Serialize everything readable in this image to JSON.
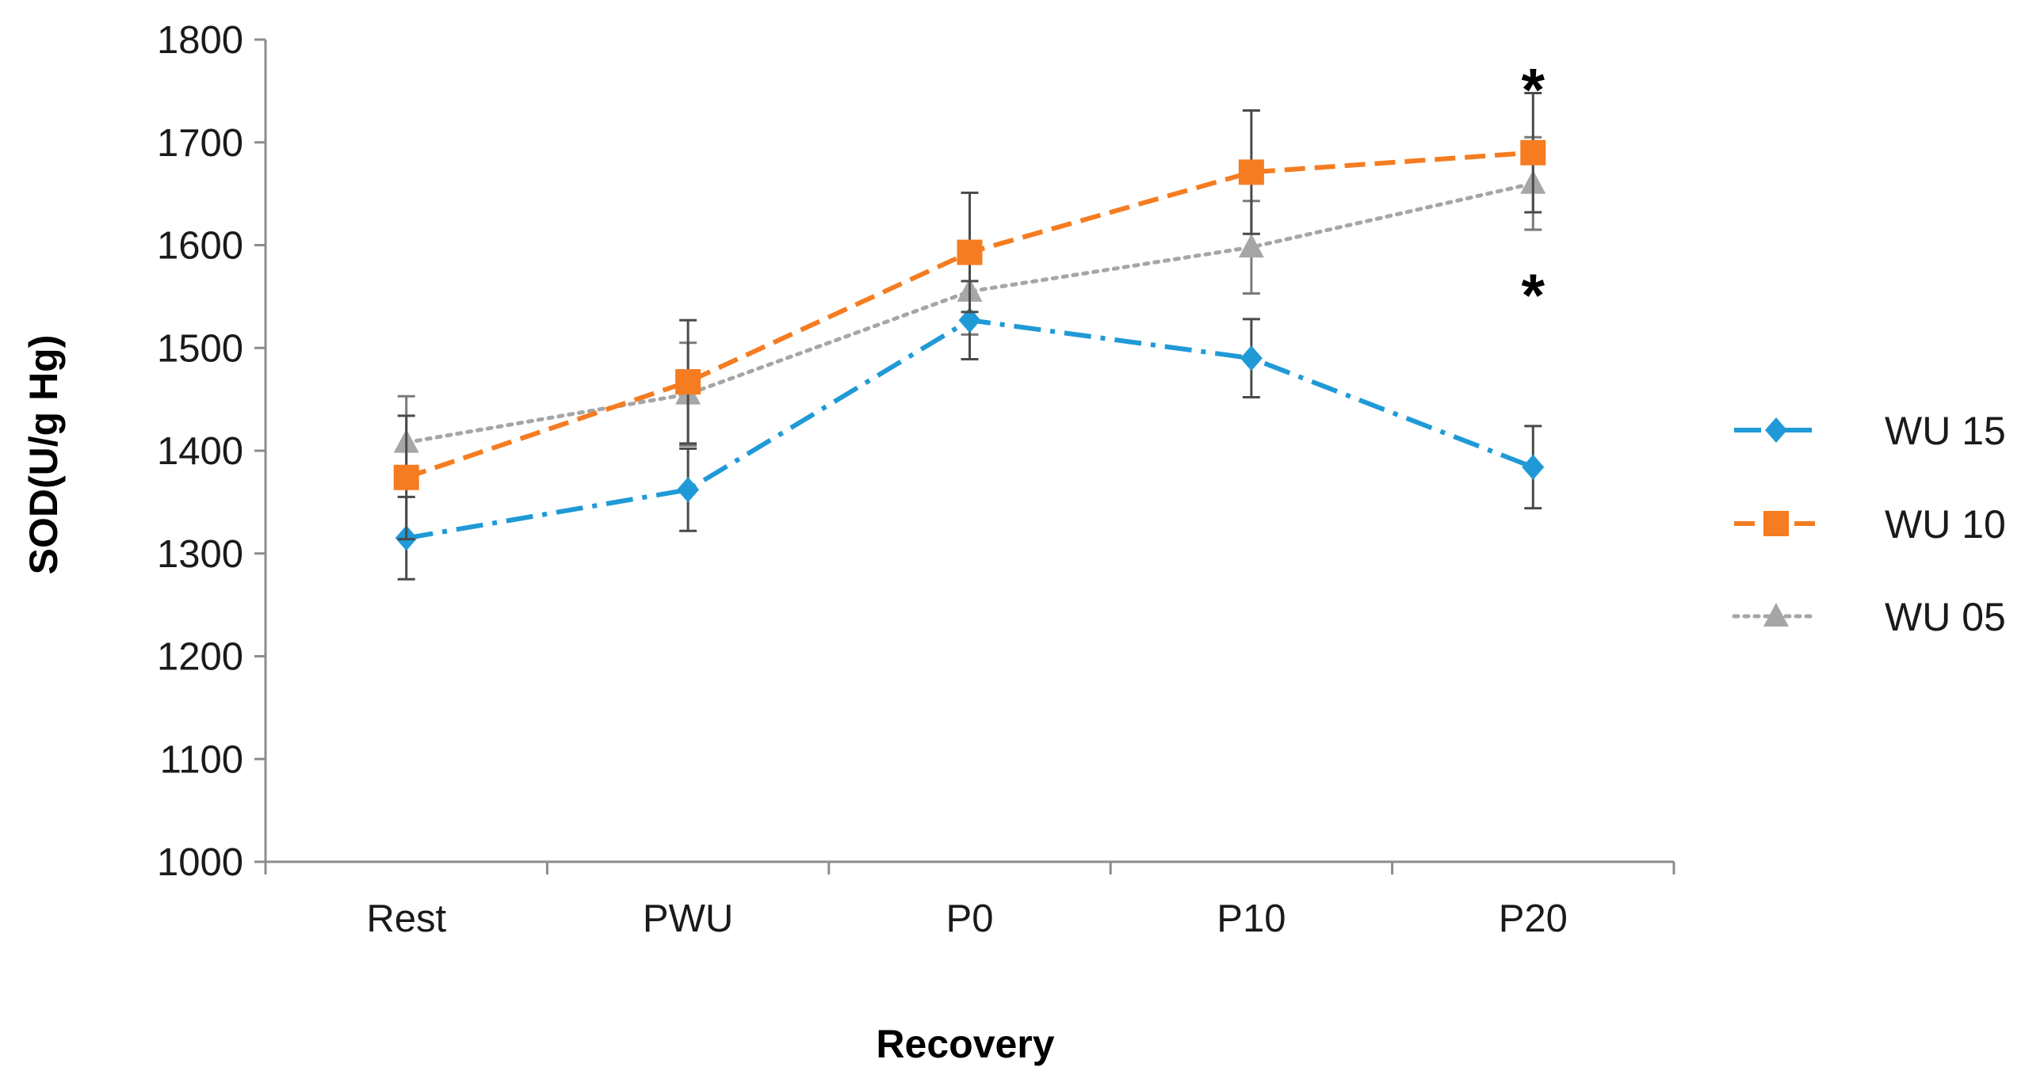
{
  "chart_data": {
    "type": "line",
    "title": "",
    "xlabel": "Recovery",
    "ylabel": "SOD(U/g Hg)",
    "categories": [
      "Rest",
      "PWU",
      "P0",
      "P10",
      "P20"
    ],
    "ylim": [
      1000,
      1800
    ],
    "ytick_step": 100,
    "grid": false,
    "legend_position": "right",
    "series": [
      {
        "name": "WU 15",
        "values": [
          1315,
          1362,
          1527,
          1490,
          1384
        ],
        "errors": [
          40,
          40,
          38,
          38,
          40
        ],
        "color": "#1f9ad6",
        "line_style": "dash-dot",
        "marker": "diamond"
      },
      {
        "name": "WU 10",
        "values": [
          1374,
          1467,
          1593,
          1671,
          1690
        ],
        "errors": [
          60,
          60,
          58,
          60,
          58
        ],
        "color": "#f57c20",
        "line_style": "dashed",
        "marker": "square"
      },
      {
        "name": "WU 05",
        "values": [
          1408,
          1455,
          1555,
          1598,
          1660
        ],
        "errors": [
          45,
          50,
          42,
          45,
          45
        ],
        "color": "#a6a6a6",
        "line_style": "dotted",
        "marker": "triangle"
      }
    ],
    "annotations": [
      {
        "text": "*",
        "category": "P20",
        "y": 1765
      },
      {
        "text": "*",
        "category": "P20",
        "y": 1565
      }
    ]
  }
}
